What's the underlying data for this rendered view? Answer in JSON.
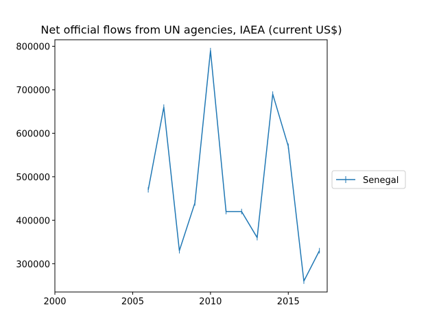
{
  "chart_data": {
    "type": "line",
    "title": "Net official flows from UN agencies, IAEA (current US$)",
    "xlabel": "",
    "ylabel": "",
    "xlim": [
      2000,
      2017.5
    ],
    "ylim": [
      235000,
      815000
    ],
    "x_ticks": [
      2000,
      2005,
      2010,
      2015
    ],
    "y_ticks": [
      300000,
      400000,
      500000,
      600000,
      700000,
      800000
    ],
    "grid": false,
    "legend_position": "center-right, outside plot",
    "series": [
      {
        "name": "Senegal",
        "color": "#1f77b4",
        "marker": "vertical-line",
        "x": [
          2006,
          2007,
          2008,
          2009,
          2010,
          2011,
          2012,
          2013,
          2014,
          2015,
          2016,
          2017
        ],
        "values": [
          470000,
          660000,
          330000,
          440000,
          790000,
          420000,
          420000,
          360000,
          690000,
          570000,
          260000,
          330000
        ]
      }
    ]
  }
}
